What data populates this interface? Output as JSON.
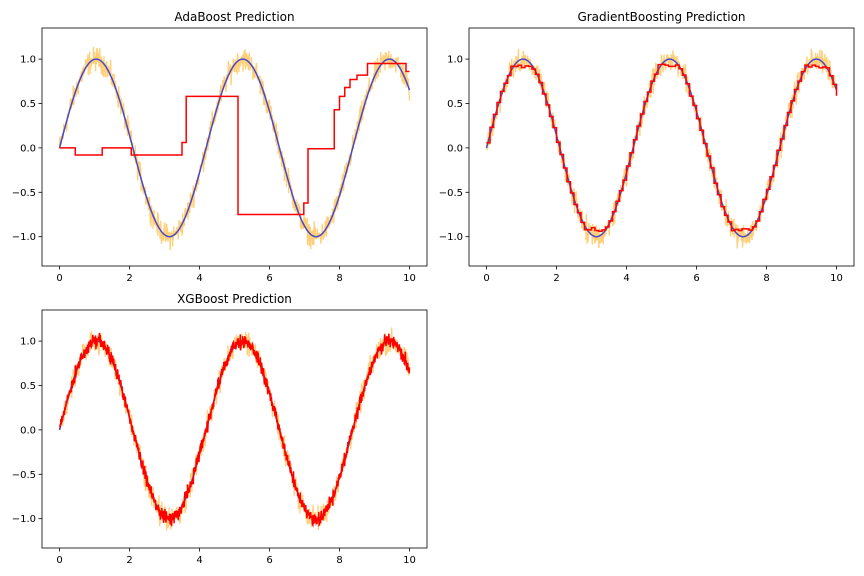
{
  "figure": {
    "background": "#ffffff"
  },
  "colors": {
    "noisy_data": "#ffc04c",
    "true_function": "#4848c8",
    "prediction": "#ff0000"
  },
  "chart_data": [
    {
      "type": "line",
      "title": "AdaBoost Prediction",
      "xlim": [
        -0.5,
        10.5
      ],
      "ylim": [
        -1.33,
        1.35
      ],
      "xticks": [
        0,
        2,
        4,
        6,
        8,
        10
      ],
      "xtick_labels": [
        "0",
        "2",
        "4",
        "6",
        "8",
        "10"
      ],
      "yticks": [
        -1.0,
        -0.5,
        0.0,
        0.5,
        1.0
      ],
      "ytick_labels": [
        "−1.0",
        "−0.5",
        "0.0",
        "0.5",
        "1.0"
      ],
      "grid": false,
      "series": [
        {
          "role": "noisy_data",
          "function": "sin(1.5x)",
          "noise_amplitude": 0.2,
          "x_range": [
            0,
            10
          ],
          "points": 1000
        },
        {
          "role": "true_function",
          "function": "sin(1.5x)",
          "x_range": [
            0,
            10
          ]
        },
        {
          "role": "prediction",
          "style": "step",
          "steps": [
            [
              0,
              0.0
            ],
            [
              0.45,
              -0.08
            ],
            [
              1.22,
              0.0
            ],
            [
              2.05,
              -0.08
            ],
            [
              3.5,
              0.06
            ],
            [
              3.62,
              0.58
            ],
            [
              5.1,
              -0.75
            ],
            [
              6.98,
              -0.62
            ],
            [
              7.1,
              -0.01
            ],
            [
              7.85,
              0.43
            ],
            [
              8.0,
              0.58
            ],
            [
              8.15,
              0.68
            ],
            [
              8.3,
              0.77
            ],
            [
              8.5,
              0.82
            ],
            [
              8.8,
              0.95
            ],
            [
              9.9,
              0.86
            ]
          ]
        }
      ]
    },
    {
      "type": "line",
      "title": "GradientBoosting Prediction",
      "xlim": [
        -0.5,
        10.5
      ],
      "ylim": [
        -1.33,
        1.35
      ],
      "xticks": [
        0,
        2,
        4,
        6,
        8,
        10
      ],
      "xtick_labels": [
        "0",
        "2",
        "4",
        "6",
        "8",
        "10"
      ],
      "yticks": [
        -1.0,
        -0.5,
        0.0,
        0.5,
        1.0
      ],
      "ytick_labels": [
        "−1.0",
        "−0.5",
        "0.0",
        "0.5",
        "1.0"
      ],
      "grid": false,
      "series": [
        {
          "role": "noisy_data",
          "function": "sin(1.5x)",
          "noise_amplitude": 0.2,
          "x_range": [
            0,
            10
          ],
          "points": 1000
        },
        {
          "role": "true_function",
          "function": "sin(1.5x)",
          "x_range": [
            0,
            10
          ]
        },
        {
          "role": "prediction",
          "style": "step_fit",
          "step_width": 0.1,
          "flat_at_peaks": true
        }
      ]
    },
    {
      "type": "line",
      "title": "XGBoost Prediction",
      "xlim": [
        -0.5,
        10.5
      ],
      "ylim": [
        -1.33,
        1.35
      ],
      "xticks": [
        0,
        2,
        4,
        6,
        8,
        10
      ],
      "xtick_labels": [
        "0",
        "2",
        "4",
        "6",
        "8",
        "10"
      ],
      "yticks": [
        -1.0,
        -0.5,
        0.0,
        0.5,
        1.0
      ],
      "ytick_labels": [
        "−1.0",
        "−0.5",
        "0.0",
        "0.5",
        "1.0"
      ],
      "grid": false,
      "series": [
        {
          "role": "noisy_data",
          "function": "sin(1.5x)",
          "noise_amplitude": 0.2,
          "x_range": [
            0,
            10
          ],
          "points": 1000
        },
        {
          "role": "true_function",
          "function": "sin(1.5x)",
          "x_range": [
            0,
            10
          ]
        },
        {
          "role": "prediction",
          "style": "overfit",
          "noise_amplitude": 0.12
        }
      ]
    }
  ]
}
